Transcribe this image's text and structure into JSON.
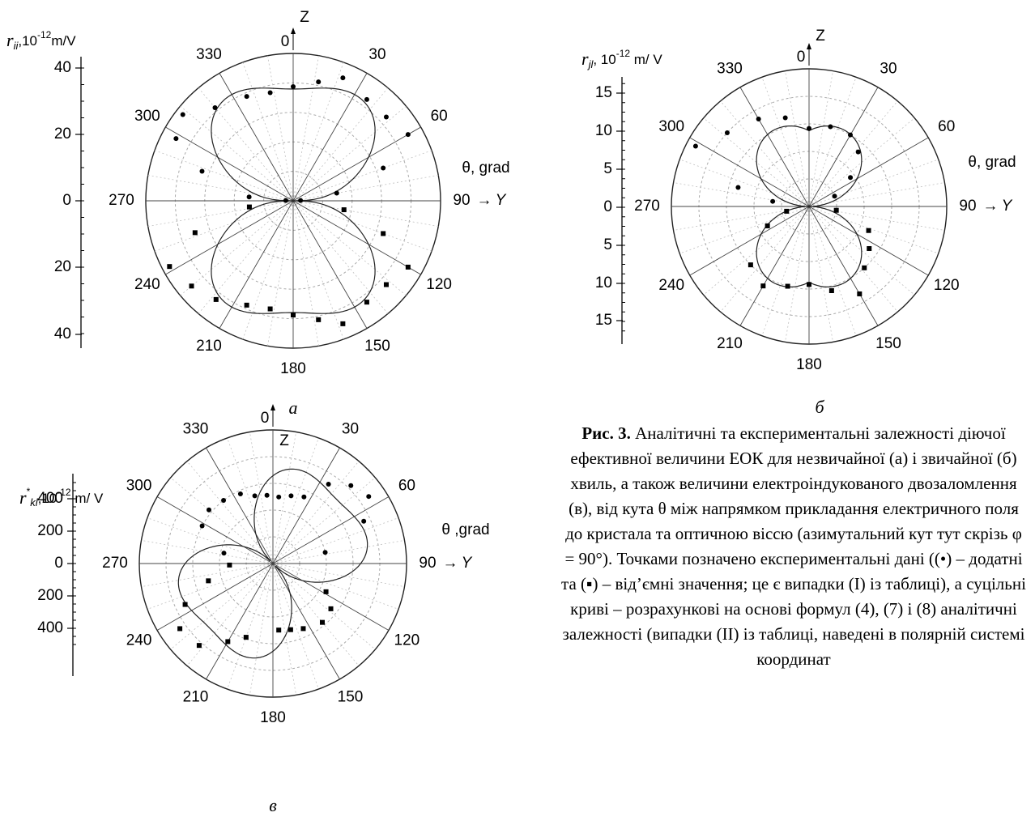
{
  "chart_data": [
    {
      "type": "scatter",
      "panel_label": "а",
      "ylabel_r": "r",
      "ylabel_sub": "ii",
      "ylabel_unit": ",10",
      "ylabel_exp": "-12",
      "ylabel_tail": "m/V",
      "axis_ticks": [
        "40",
        "20",
        "0",
        "20",
        "40"
      ],
      "axis_tick_values": [
        40,
        20,
        0,
        -20,
        -40
      ],
      "radial_max": 40,
      "angle_labels": [
        "0",
        "30",
        "60",
        "90",
        "120",
        "150",
        "180",
        "210",
        "240",
        "270",
        "300",
        "330"
      ],
      "z_label": "Z",
      "y_axis_label": "Y",
      "theta_label": "θ, grad",
      "arrow_glyph": "→",
      "curve": {
        "type": "lobes",
        "amplitude": 37,
        "power": 1.6,
        "tilt_deg": 0
      },
      "series": [
        {
          "marker": "circle",
          "points": [
            [
              0,
              31
            ],
            [
              12,
              33
            ],
            [
              22,
              36
            ],
            [
              36,
              34
            ],
            [
              48,
              34
            ],
            [
              60,
              36
            ],
            [
              70,
              26
            ],
            [
              80,
              12
            ],
            [
              -12,
              30
            ],
            [
              -24,
              31
            ],
            [
              -40,
              33
            ],
            [
              -52,
              38
            ],
            [
              -62,
              36
            ],
            [
              -72,
              26
            ],
            [
              -85,
              12
            ],
            [
              88,
              2
            ],
            [
              -88,
              2
            ]
          ]
        },
        {
          "marker": "square",
          "points": [
            [
              180,
              31
            ],
            [
              168,
              33
            ],
            [
              158,
              36
            ],
            [
              144,
              34
            ],
            [
              132,
              34
            ],
            [
              120,
              36
            ],
            [
              110,
              26
            ],
            [
              100,
              14
            ],
            [
              192,
              30
            ],
            [
              204,
              31
            ],
            [
              218,
              34
            ],
            [
              230,
              36
            ],
            [
              242,
              38
            ],
            [
              252,
              28
            ],
            [
              262,
              12
            ]
          ]
        }
      ]
    },
    {
      "type": "scatter",
      "panel_label": "б",
      "ylabel_r": "r",
      "ylabel_sub": "jl",
      "ylabel_unit": ", 10",
      "ylabel_exp": "-12",
      "ylabel_tail": " m/ V",
      "axis_ticks": [
        "15",
        "10",
        "5",
        "0",
        "5",
        "10",
        "15"
      ],
      "axis_tick_values": [
        15,
        10,
        5,
        0,
        -5,
        -10,
        -15
      ],
      "radial_max": 15,
      "angle_labels": [
        "0",
        "30",
        "60",
        "90",
        "120",
        "150",
        "180",
        "210",
        "240",
        "270",
        "300",
        "330"
      ],
      "z_label": "Z",
      "y_axis_label": "Y",
      "theta_label": "θ, grad",
      "arrow_glyph": "→",
      "curve": {
        "type": "circles",
        "amplitude": 11,
        "tilt_deg": 0
      },
      "series": [
        {
          "marker": "circle",
          "points": [
            [
              0,
              8.5
            ],
            [
              15,
              9
            ],
            [
              30,
              9
            ],
            [
              42,
              8
            ],
            [
              55,
              5.5
            ],
            [
              68,
              3
            ],
            [
              -15,
              10
            ],
            [
              -30,
              11
            ],
            [
              -48,
              12
            ],
            [
              -62,
              14
            ],
            [
              -75,
              8
            ],
            [
              -82,
              4
            ]
          ]
        },
        {
          "marker": "square",
          "points": [
            [
              180,
              8.5
            ],
            [
              165,
              9.5
            ],
            [
              150,
              11
            ],
            [
              138,
              9
            ],
            [
              125,
              8
            ],
            [
              112,
              7
            ],
            [
              98,
              3
            ],
            [
              195,
              9
            ],
            [
              210,
              10
            ],
            [
              225,
              9
            ],
            [
              245,
              5
            ],
            [
              258,
              2.5
            ]
          ]
        }
      ]
    },
    {
      "type": "scatter",
      "panel_label": "в",
      "ylabel_r": "r",
      "ylabel_star": "*",
      "ylabel_sub": "kl",
      "ylabel_unit": ",10",
      "ylabel_exp": "-12",
      "ylabel_tail": " m/ V",
      "axis_ticks": [
        "400",
        "200",
        "0",
        "200",
        "400"
      ],
      "axis_tick_values": [
        400,
        200,
        0,
        -200,
        -400
      ],
      "radial_max": 400,
      "angle_labels": [
        "0",
        "30",
        "60",
        "90",
        "120",
        "150",
        "180",
        "210",
        "240",
        "270",
        "300",
        "330"
      ],
      "z_label": "Z",
      "y_axis_label": "Y",
      "theta_label": "θ ,grad",
      "arrow_glyph": "→",
      "curve": {
        "type": "lobes",
        "amplitude": 330,
        "power": 1.3,
        "tilt_deg": 45
      },
      "series": [
        {
          "marker": "circle",
          "points": [
            [
              5,
              200
            ],
            [
              15,
              210
            ],
            [
              25,
              220
            ],
            [
              35,
              290
            ],
            [
              45,
              330
            ],
            [
              55,
              350
            ],
            [
              65,
              300
            ],
            [
              78,
              160
            ],
            [
              -5,
              205
            ],
            [
              -15,
              210
            ],
            [
              -25,
              230
            ],
            [
              -38,
              240
            ],
            [
              -50,
              250
            ],
            [
              -62,
              240
            ],
            [
              -78,
              150
            ]
          ]
        },
        {
          "marker": "square",
          "points": [
            [
              175,
              200
            ],
            [
              165,
              205
            ],
            [
              155,
              215
            ],
            [
              140,
              230
            ],
            [
              128,
              220
            ],
            [
              118,
              180
            ],
            [
              200,
              235
            ],
            [
              210,
              270
            ],
            [
              222,
              330
            ],
            [
              235,
              340
            ],
            [
              245,
              290
            ],
            [
              255,
              200
            ],
            [
              268,
              130
            ]
          ]
        }
      ]
    }
  ],
  "caption": {
    "label": "Рис. 3.",
    "text": " Аналітичні та експериментальні залежності діючої ефективної величини ЕОК для незвичайної (а) і звичайної (б) хвиль, а також величини електроіндукованого двозаломлення (в), від кута θ між напрямком прикладання електричного поля до кристала та оптичною віссю (азимутальний кут тут скрізь φ = 90°). Точками позначено експериментальні дані ((•) – додатні та (▪) – від’ємні значення; це є випадки (I) із таблиці), а суцільні криві – розрахункові на основі формул (4), (7) і (8) аналітичні залежності (випадки (II) із таблиці, наведені в полярній системі координат"
  }
}
